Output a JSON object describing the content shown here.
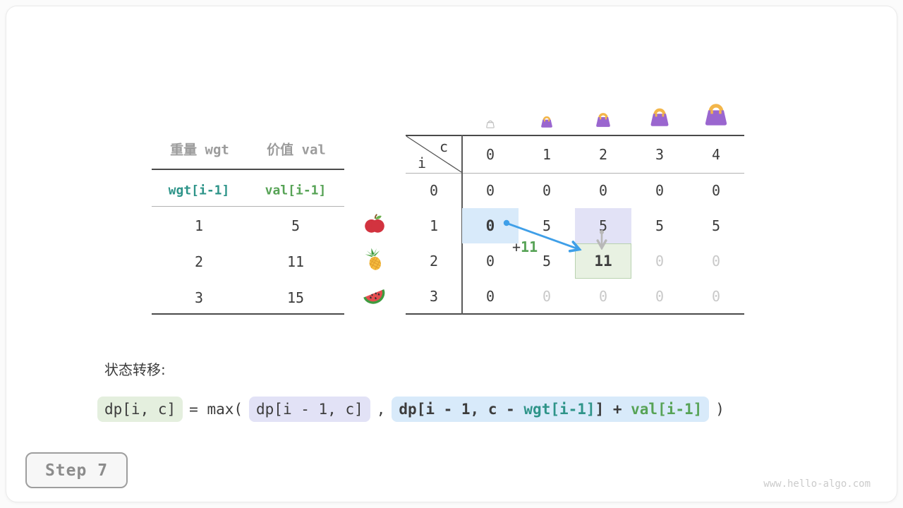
{
  "page": {
    "step_badge": "Step 7",
    "watermark": "www.hello-algo.com"
  },
  "colors": {
    "dark_text": "#3c3c3c",
    "dim_text": "#c9c9c9",
    "gray_header": "#9c9c9c",
    "teal": "#2e9489",
    "green": "#57a356",
    "arrow_blue": "#3f9fe8",
    "arrow_gray": "#b8b8b8",
    "cell_blue": "#d8eafa",
    "cell_lavender": "#e2e2f6",
    "cell_green_bg": "#e8f1e2",
    "cell_green_border": "#b9d2b0",
    "box_green": "#e4efde",
    "bag_purple": "#9a66cf",
    "bag_handle": "#f3b64a"
  },
  "items_table": {
    "headers": [
      "重量 wgt",
      "价值 val"
    ],
    "subheaders": [
      "wgt[i-1]",
      "val[i-1]"
    ],
    "rows": [
      {
        "wgt": "1",
        "val": "5",
        "icon": "apple-icon"
      },
      {
        "wgt": "2",
        "val": "11",
        "icon": "pineapple-icon"
      },
      {
        "wgt": "3",
        "val": "15",
        "icon": "watermelon-icon"
      }
    ]
  },
  "dp_table": {
    "corner": {
      "col_var": "c",
      "row_var": "i"
    },
    "col_headers": [
      "0",
      "1",
      "2",
      "3",
      "4"
    ],
    "row_headers": [
      "0",
      "1",
      "2",
      "3"
    ],
    "capacity_icons": [
      {
        "name": "handbag-icon",
        "variant": "outline",
        "size": 18
      },
      {
        "name": "handbag-icon",
        "variant": "filled",
        "size": 24
      },
      {
        "name": "handbag-icon",
        "variant": "filled",
        "size": 30
      },
      {
        "name": "handbag-icon",
        "variant": "filled",
        "size": 38
      },
      {
        "name": "handbag-icon",
        "variant": "filled",
        "size": 46
      }
    ],
    "cells": [
      [
        {
          "v": "0"
        },
        {
          "v": "0"
        },
        {
          "v": "0"
        },
        {
          "v": "0"
        },
        {
          "v": "0"
        }
      ],
      [
        {
          "v": "0",
          "bold": true,
          "hl": "blue"
        },
        {
          "v": "5"
        },
        {
          "v": "5",
          "hl": "lavender"
        },
        {
          "v": "5"
        },
        {
          "v": "5"
        }
      ],
      [
        {
          "v": "0"
        },
        {
          "v": "5"
        },
        {
          "v": "11",
          "bold": true,
          "hl": "green"
        },
        {
          "v": "0",
          "dim": true
        },
        {
          "v": "0",
          "dim": true
        }
      ],
      [
        {
          "v": "0"
        },
        {
          "v": "0",
          "dim": true
        },
        {
          "v": "0",
          "dim": true
        },
        {
          "v": "0",
          "dim": true
        },
        {
          "v": "0",
          "dim": true
        }
      ]
    ],
    "annotation": {
      "plus": "+",
      "value": "11"
    }
  },
  "transition": {
    "label": "状态转移:",
    "lhs": "dp[i, c]",
    "eq_max": "= max(",
    "arg1": "dp[i - 1, c]",
    "comma": ",",
    "arg2": [
      {
        "text": "dp[i - 1, c - ",
        "color": "dark"
      },
      {
        "text": "wgt[i-1]",
        "color": "teal"
      },
      {
        "text": "] + ",
        "color": "dark"
      },
      {
        "text": "val[i-1]",
        "color": "green"
      }
    ],
    "close": ")"
  }
}
